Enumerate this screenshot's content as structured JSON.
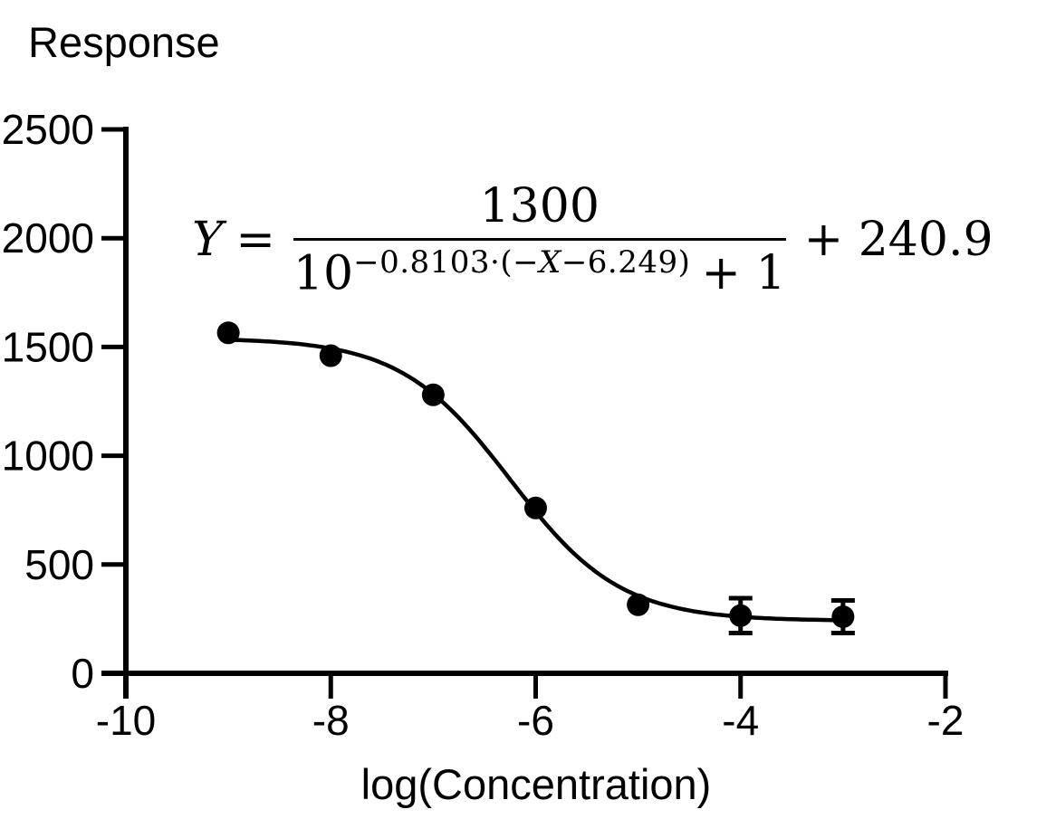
{
  "title": "Response",
  "xlabel": "log(Concentration)",
  "colors": {
    "foreground": "#000000",
    "background": "#ffffff"
  },
  "equation": {
    "lhs": "Y",
    "equals": "=",
    "numerator": "1300",
    "den_base": "10",
    "exp_pre": "−0.8103·(−",
    "exp_var": "X",
    "exp_post": "−6.249)",
    "den_plus": "+ 1",
    "tail": "+ 240.9"
  },
  "chart_data": {
    "type": "scatter",
    "title": "Response",
    "xlabel": "log(Concentration)",
    "ylabel": "Response",
    "x": [
      -9,
      -8,
      -7,
      -6,
      -5,
      -4,
      -3
    ],
    "y": [
      1565,
      1460,
      1280,
      760,
      315,
      265,
      260
    ],
    "yerr": [
      0,
      0,
      0,
      0,
      0,
      80,
      75
    ],
    "xlim": [
      -10,
      -2
    ],
    "ylim": [
      0,
      2500
    ],
    "xticks": [
      -10,
      -8,
      -6,
      -4,
      -2
    ],
    "yticks": [
      0,
      500,
      1000,
      1500,
      2000,
      2500
    ],
    "grid": false,
    "legend": false,
    "marker": {
      "shape": "filled-circle",
      "color": "#000000",
      "radius_px": 12.5
    },
    "fit_curve": {
      "equation_text": "Y = 1300 / (10^(−0.8103·(−X−6.249)) + 1) + 240.9",
      "amplitude": 1300,
      "baseline": 240.9,
      "slope_k": -0.8103,
      "offset_c": 6.249,
      "x_start": -9,
      "x_end": -3,
      "color": "#000000"
    }
  }
}
